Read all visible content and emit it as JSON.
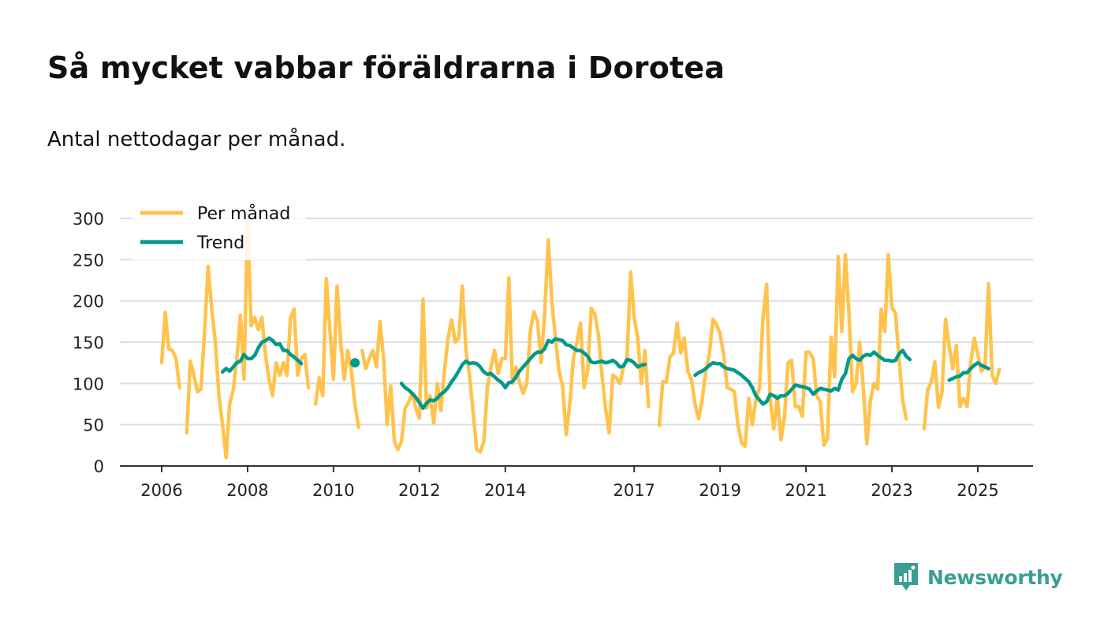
{
  "title": "Så mycket vabbar föräldrarna i Dorotea",
  "subtitle": "Antal nettodagar per månad.",
  "brand": "Newsworthy",
  "colors": {
    "monthly": "#FFC34D",
    "trend": "#00998A",
    "grid": "#dddddd",
    "axis": "#333333"
  },
  "chart_data": {
    "type": "line",
    "title": "Så mycket vabbar föräldrarna i Dorotea",
    "subtitle": "Antal nettodagar per månad.",
    "ylim": [
      0,
      300
    ],
    "y_ticks": [
      0,
      50,
      100,
      150,
      200,
      250,
      300
    ],
    "x_ticks": [
      2006,
      2008,
      2010,
      2012,
      2014,
      2017,
      2019,
      2021,
      2023,
      2025
    ],
    "legend": {
      "placement": "top-left",
      "entries": [
        "Per månad",
        "Trend"
      ]
    },
    "x_domain": [
      2005.0,
      2026.25
    ],
    "series": [
      {
        "name": "Per månad",
        "segments": [
          {
            "start": 2006.0,
            "values": [
              125,
              186,
              142,
              140,
              130,
              95
            ]
          },
          {
            "start": 2006.583,
            "values": [
              40,
              127,
              110,
              90,
              93,
              165,
              242,
              190,
              150,
              85,
              50,
              10,
              75,
              92,
              130,
              183,
              105,
              300,
              170,
              180,
              165,
              180,
              135,
              105,
              85,
              125,
              110,
              125,
              110,
              180,
              190,
              110,
              130,
              135,
              95
            ]
          },
          {
            "start": 2009.583,
            "values": [
              75,
              107,
              85,
              227,
              165,
              105,
              218,
              150,
              105,
              140,
              115,
              75,
              47
            ]
          },
          {
            "start": 2010.667,
            "values": [
              140,
              118,
              130,
              140,
              120,
              175,
              130,
              50,
              97,
              30,
              20,
              30,
              70,
              77,
              88,
              70,
              58,
              202,
              70,
              85,
              52,
              100,
              67,
              115,
              155,
              177,
              150,
              155,
              218,
              140,
              110,
              65,
              20,
              17,
              30,
              95,
              120,
              140,
              112,
              130,
              130,
              228,
              100,
              120,
              100,
              88,
              100,
              165,
              187,
              175,
              125,
              185,
              274,
              200,
              155,
              115,
              97,
              38,
              75,
              130,
              150,
              173,
              95,
              115,
              191,
              184,
              160,
              110,
              70,
              40,
              110,
              107,
              100,
              120,
              130,
              235,
              180,
              155,
              100,
              140,
              72
            ]
          },
          {
            "start": 2017.583,
            "values": [
              49,
              102,
              102,
              132,
              137,
              173,
              137,
              155,
              115,
              105,
              75,
              57,
              80,
              115,
              135,
              178,
              172,
              160,
              135,
              95,
              93,
              90,
              50,
              28,
              24,
              82,
              50,
              80,
              95,
              180,
              220,
              80,
              45,
              85,
              32,
              60,
              125,
              128,
              72,
              72,
              60,
              138,
              138,
              130,
              85,
              78,
              25,
              33,
              156,
              108,
              254,
              163,
              256,
              185,
              90,
              100,
              150,
              95,
              27,
              80,
              100,
              93,
              190,
              163,
              256,
              192,
              185,
              130,
              80,
              57
            ]
          },
          {
            "start": 2023.75,
            "values": [
              45,
              92,
              102,
              126,
              71,
              90,
              178,
              145,
              118,
              146,
              72,
              82,
              72,
              125,
              155,
              135,
              115,
              120,
              221,
              110,
              100,
              117
            ]
          }
        ]
      },
      {
        "name": "Trend",
        "segments": [
          {
            "start": 2007.417,
            "values": [
              114,
              118,
              115,
              120,
              125,
              127,
              135,
              130,
              130,
              134,
              143,
              150,
              152,
              155,
              152,
              147,
              148,
              140,
              140,
              135,
              132,
              128,
              124
            ]
          },
          {
            "start": 2010.5,
            "values": [
              125
            ]
          },
          {
            "start": 2011.583,
            "values": [
              100,
              95,
              92,
              88,
              83,
              77,
              70,
              76,
              80,
              79,
              82,
              87,
              90,
              95,
              102,
              108,
              115,
              123,
              127,
              124,
              125,
              124,
              120,
              114,
              111,
              112,
              108,
              104,
              101,
              95,
              101,
              102,
              108,
              115,
              120,
              125,
              130,
              135,
              138,
              138,
              142,
              152,
              150,
              154,
              153,
              152,
              147,
              146,
              143,
              140,
              140,
              137,
              133,
              126,
              125,
              126,
              127,
              125,
              126,
              128,
              125,
              120,
              121,
              129,
              128,
              125,
              120,
              122,
              123
            ]
          },
          {
            "start": 2018.417,
            "values": [
              110,
              113,
              115,
              118,
              122,
              125,
              124,
              124,
              120,
              118,
              117,
              116,
              113,
              110,
              106,
              102,
              95,
              85,
              80,
              75,
              78,
              87,
              85,
              82,
              85,
              85,
              88,
              93,
              98,
              97,
              96,
              95,
              93,
              87,
              91,
              94,
              93,
              92,
              91,
              94,
              92,
              105,
              112,
              130,
              134,
              130,
              128,
              133,
              135,
              134,
              138,
              134,
              131,
              128,
              128,
              127,
              128,
              136,
              140,
              133,
              129
            ]
          },
          {
            "start": 2024.333,
            "values": [
              104,
              106,
              108,
              109,
              113,
              113,
              118,
              122,
              125,
              122,
              120,
              118
            ]
          }
        ]
      }
    ]
  }
}
